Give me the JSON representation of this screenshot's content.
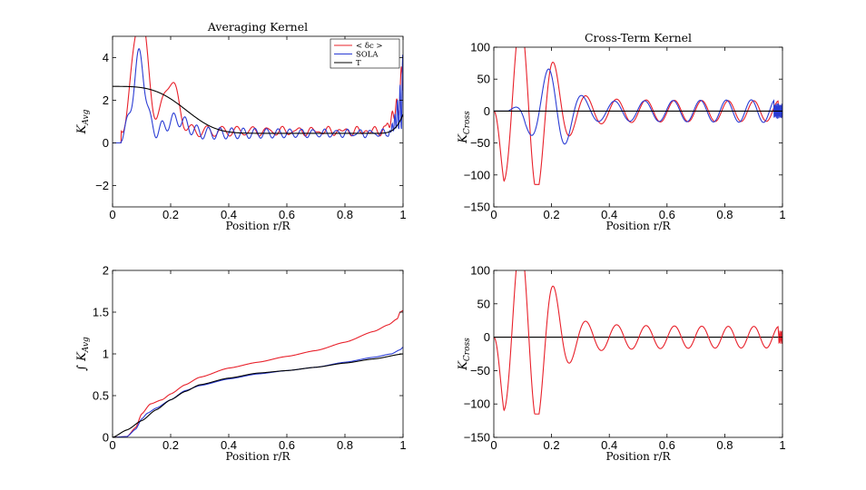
{
  "figure": {
    "background": "#ffffff"
  },
  "chart_data": [
    {
      "id": "avg_kernel",
      "type": "line",
      "title": "Averaging Kernel",
      "xlabel": "Position r/R",
      "ylabel_main": "K",
      "ylabel_sub": "Avg",
      "ylabel_prefix": "",
      "xlim": [
        0,
        1
      ],
      "ylim": [
        -3,
        5
      ],
      "xticks": [
        0,
        0.2,
        0.4,
        0.6,
        0.8,
        1
      ],
      "xtick_labels": [
        "0",
        "0.2",
        "0.4",
        "0.6",
        "0.8",
        "1"
      ],
      "yticks": [
        -2,
        0,
        2,
        4
      ],
      "ytick_labels": [
        "−2",
        "0",
        "2",
        "4"
      ],
      "legend": {
        "position": "top-right",
        "entries": [
          "< δc >",
          "SOLA",
          "T"
        ]
      },
      "series": [
        {
          "name": "< δc >",
          "color": "#e8202a",
          "gen": {
            "kind": "avg_red"
          }
        },
        {
          "name": "SOLA",
          "color": "#2a3cd4",
          "gen": {
            "kind": "avg_blue"
          }
        },
        {
          "name": "T",
          "color": "#000000",
          "gen": {
            "kind": "avg_black"
          }
        }
      ]
    },
    {
      "id": "cross_kernel_top",
      "type": "line",
      "title": "Cross-Term Kernel",
      "xlabel": "Position r/R",
      "ylabel_main": "K",
      "ylabel_sub": "Cross",
      "ylabel_prefix": "",
      "xlim": [
        0,
        1
      ],
      "ylim": [
        -150,
        100
      ],
      "xticks": [
        0,
        0.2,
        0.4,
        0.6,
        0.8,
        1
      ],
      "xtick_labels": [
        "0",
        "0.2",
        "0.4",
        "0.6",
        "0.8",
        "1"
      ],
      "yticks": [
        -150,
        -100,
        -50,
        0,
        50,
        100
      ],
      "ytick_labels": [
        "−150",
        "−100",
        "−50",
        "0",
        "50",
        "100"
      ],
      "series": [
        {
          "name": "red",
          "color": "#e8202a",
          "gen": {
            "kind": "cross_red"
          }
        },
        {
          "name": "blue",
          "color": "#2a3cd4",
          "gen": {
            "kind": "cross_blue"
          }
        },
        {
          "name": "black",
          "color": "#000000",
          "gen": {
            "kind": "zero"
          }
        }
      ]
    },
    {
      "id": "int_avg_kernel",
      "type": "line",
      "title": "",
      "xlabel": "Position r/R",
      "ylabel_main": "K",
      "ylabel_sub": "Avg",
      "ylabel_prefix": "∫",
      "xlim": [
        0,
        1
      ],
      "ylim": [
        0,
        2
      ],
      "xticks": [
        0,
        0.2,
        0.4,
        0.6,
        0.8,
        1
      ],
      "xtick_labels": [
        "0",
        "0.2",
        "0.4",
        "0.6",
        "0.8",
        "1"
      ],
      "yticks": [
        0,
        0.5,
        1,
        1.5,
        2
      ],
      "ytick_labels": [
        "0",
        "0.5",
        "1",
        "1.5",
        "2"
      ],
      "series": [
        {
          "name": "red",
          "color": "#e8202a",
          "gen": {
            "kind": "cum",
            "points": [
              [
                0,
                0
              ],
              [
                0.05,
                0.01
              ],
              [
                0.08,
                0.12
              ],
              [
                0.1,
                0.28
              ],
              [
                0.13,
                0.4
              ],
              [
                0.17,
                0.45
              ],
              [
                0.2,
                0.52
              ],
              [
                0.25,
                0.63
              ],
              [
                0.3,
                0.72
              ],
              [
                0.4,
                0.83
              ],
              [
                0.5,
                0.9
              ],
              [
                0.6,
                0.97
              ],
              [
                0.7,
                1.04
              ],
              [
                0.8,
                1.14
              ],
              [
                0.9,
                1.27
              ],
              [
                0.95,
                1.35
              ],
              [
                0.98,
                1.42
              ],
              [
                0.99,
                1.5
              ],
              [
                1.0,
                1.52
              ]
            ]
          }
        },
        {
          "name": "blue",
          "color": "#2a3cd4",
          "gen": {
            "kind": "cum",
            "points": [
              [
                0,
                0
              ],
              [
                0.05,
                0.01
              ],
              [
                0.08,
                0.1
              ],
              [
                0.1,
                0.22
              ],
              [
                0.12,
                0.29
              ],
              [
                0.15,
                0.35
              ],
              [
                0.2,
                0.45
              ],
              [
                0.25,
                0.56
              ],
              [
                0.3,
                0.62
              ],
              [
                0.4,
                0.7
              ],
              [
                0.5,
                0.76
              ],
              [
                0.6,
                0.8
              ],
              [
                0.7,
                0.84
              ],
              [
                0.8,
                0.9
              ],
              [
                0.9,
                0.96
              ],
              [
                0.96,
                1.0
              ],
              [
                0.99,
                1.05
              ],
              [
                1.0,
                1.08
              ]
            ]
          }
        },
        {
          "name": "black",
          "color": "#000000",
          "gen": {
            "kind": "cum",
            "points": [
              [
                0,
                0
              ],
              [
                0.05,
                0.09
              ],
              [
                0.1,
                0.2
              ],
              [
                0.15,
                0.33
              ],
              [
                0.2,
                0.45
              ],
              [
                0.25,
                0.55
              ],
              [
                0.3,
                0.63
              ],
              [
                0.4,
                0.71
              ],
              [
                0.5,
                0.77
              ],
              [
                0.6,
                0.8
              ],
              [
                0.7,
                0.84
              ],
              [
                0.8,
                0.89
              ],
              [
                0.9,
                0.94
              ],
              [
                1.0,
                1.0
              ]
            ]
          }
        }
      ]
    },
    {
      "id": "cross_kernel_bottom",
      "type": "line",
      "title": "",
      "xlabel": "Position r/R",
      "ylabel_main": "K",
      "ylabel_sub": "Cross",
      "ylabel_prefix": "",
      "xlim": [
        0,
        1
      ],
      "ylim": [
        -150,
        100
      ],
      "xticks": [
        0,
        0.2,
        0.4,
        0.6,
        0.8,
        1
      ],
      "xtick_labels": [
        "0",
        "0.2",
        "0.4",
        "0.6",
        "0.8",
        "1"
      ],
      "yticks": [
        -150,
        -100,
        -50,
        0,
        50,
        100
      ],
      "ytick_labels": [
        "−150",
        "−100",
        "−50",
        "0",
        "50",
        "100"
      ],
      "series": [
        {
          "name": "black",
          "color": "#000000",
          "gen": {
            "kind": "zero"
          }
        },
        {
          "name": "red",
          "color": "#e8202a",
          "gen": {
            "kind": "cross_red"
          }
        }
      ]
    }
  ]
}
